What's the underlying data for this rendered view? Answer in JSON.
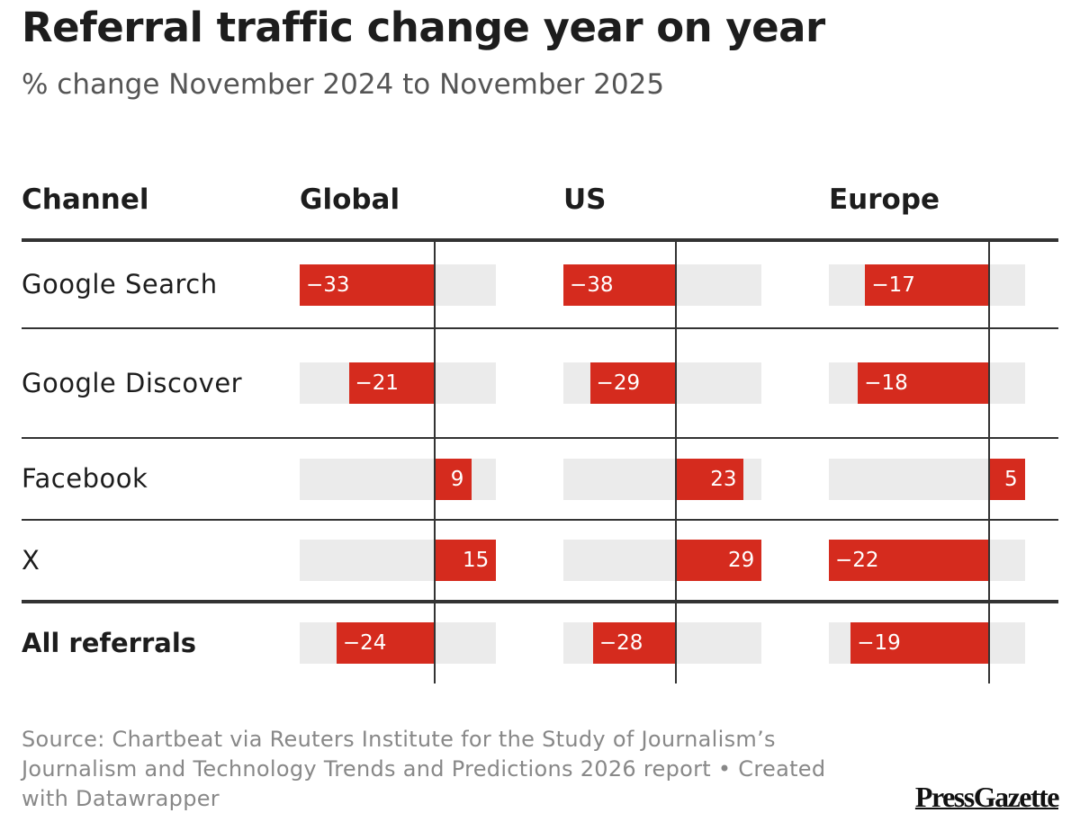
{
  "chart_data": {
    "type": "bar-table",
    "title": "Referral traffic change year on year",
    "subtitle": "% change November 2024 to November 2025",
    "category_header": "Channel",
    "categories": [
      "Google Search",
      "Google Discover",
      "Facebook",
      "X",
      "All referrals"
    ],
    "series": [
      {
        "name": "Global",
        "color": "#d52b1e",
        "xlim": [
          -33,
          15
        ],
        "values": [
          -33,
          -21,
          9,
          15,
          -24
        ],
        "value_labels": [
          "−33",
          "−21",
          "9",
          "15",
          "−24"
        ]
      },
      {
        "name": "US",
        "color": "#d52b1e",
        "xlim": [
          -38,
          29
        ],
        "values": [
          -38,
          -29,
          23,
          29,
          -28
        ],
        "value_labels": [
          "−38",
          "−29",
          "23",
          "29",
          "−28"
        ]
      },
      {
        "name": "Europe",
        "color": "#d52b1e",
        "xlim": [
          -22,
          5
        ],
        "values": [
          -17,
          -18,
          5,
          -22,
          -19
        ],
        "value_labels": [
          "−17",
          "−18",
          "5",
          "−22",
          "−19"
        ]
      }
    ],
    "source": "Source: Chartbeat via Reuters Institute for the Study of Journalism’s Journalism and Technology Trends and Predictions 2026 report • Created with Datawrapper",
    "logo": "PressGazette"
  }
}
